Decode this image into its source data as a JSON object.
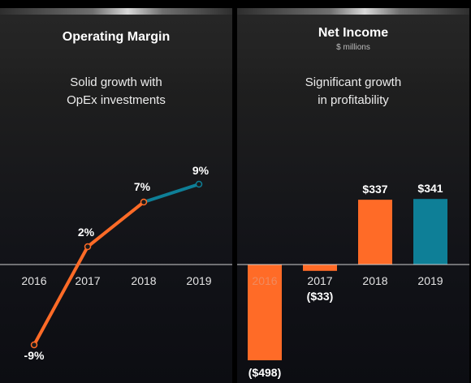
{
  "panels": {
    "left": {
      "title": "Operating Margin",
      "tagline_line1": "Solid growth with",
      "tagline_line2": "OpEx investments"
    },
    "right": {
      "title": "Net Income",
      "subtitle": "$ millions",
      "tagline_line1": "Significant growth",
      "tagline_line2": "in profitability"
    }
  },
  "colors": {
    "orange": "#ff6b27",
    "teal": "#0e7f97",
    "axis": "#d0d0d0",
    "tick_label": "#e4e4e4",
    "tick_label_on_bar": "#f08a5e"
  },
  "chart_data": [
    {
      "type": "line",
      "title": "Operating Margin",
      "categories": [
        "2016",
        "2017",
        "2018",
        "2019"
      ],
      "values": [
        -9,
        2,
        7,
        9
      ],
      "value_labels": [
        "-9%",
        "2%",
        "7%",
        "9%"
      ],
      "unit": "%",
      "segment_colors": [
        "orange",
        "orange",
        "teal"
      ],
      "ylim": [
        -11,
        11
      ],
      "grid": false,
      "legend": "none"
    },
    {
      "type": "bar",
      "title": "Net Income",
      "subtitle": "$ millions",
      "categories": [
        "2016",
        "2017",
        "2018",
        "2019"
      ],
      "values": [
        -498,
        -33,
        337,
        341
      ],
      "value_labels": [
        "($498)",
        "($33)",
        "$337",
        "$341"
      ],
      "bar_colors": [
        "orange",
        "orange",
        "orange",
        "teal"
      ],
      "ylim": [
        -520,
        400
      ],
      "grid": false,
      "legend": "none"
    }
  ]
}
